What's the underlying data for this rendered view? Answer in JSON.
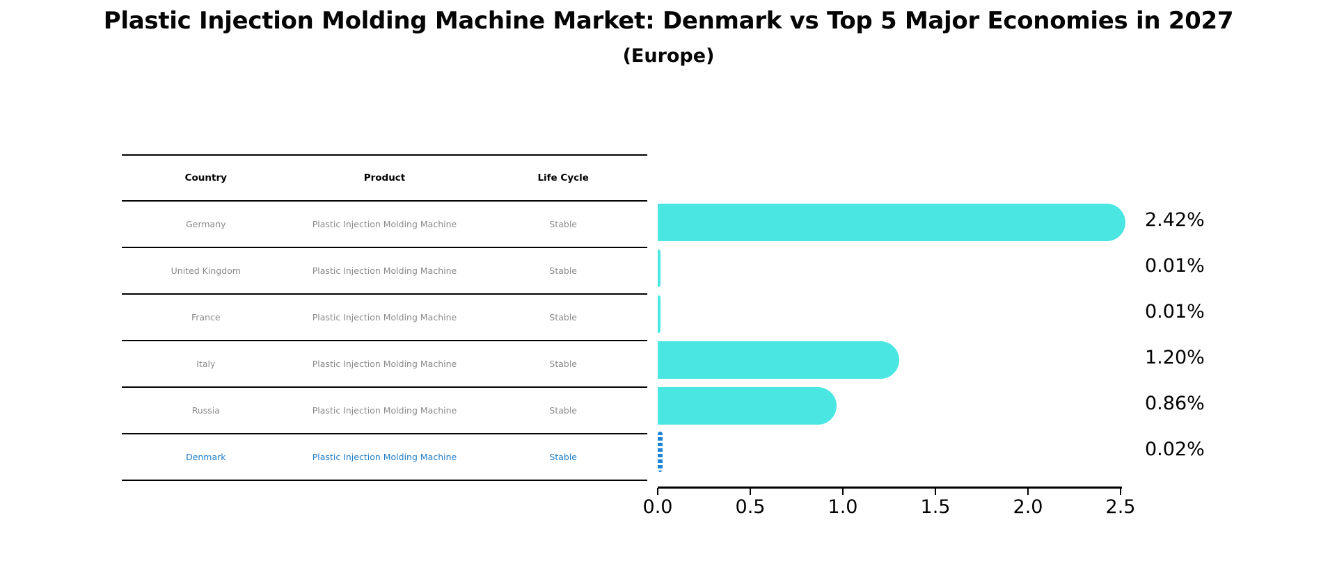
{
  "title": "Plastic Injection Molding Machine Market: Denmark vs Top 5 Major Economies in 2027",
  "subtitle": "(Europe)",
  "table": {
    "headers": [
      "Country",
      "Product",
      "Life Cycle"
    ],
    "rows": [
      {
        "country": "Germany",
        "product": "Plastic Injection Molding Machine",
        "life_cycle": "Stable"
      },
      {
        "country": "United Kingdom",
        "product": "Plastic Injection Molding Machine",
        "life_cycle": "Stable"
      },
      {
        "country": "France",
        "product": "Plastic Injection Molding Machine",
        "life_cycle": "Stable"
      },
      {
        "country": "Italy",
        "product": "Plastic Injection Molding Machine",
        "life_cycle": "Stable"
      },
      {
        "country": "Russia",
        "product": "Plastic Injection Molding Machine",
        "life_cycle": "Stable"
      },
      {
        "country": "Denmark",
        "product": "Plastic Injection Molding Machine",
        "life_cycle": "Stable"
      }
    ],
    "highlight_row_index": 5
  },
  "chart_data": {
    "type": "bar",
    "orientation": "horizontal",
    "categories": [
      "Germany",
      "United Kingdom",
      "France",
      "Italy",
      "Russia",
      "Denmark"
    ],
    "values": [
      2.42,
      0.01,
      0.01,
      1.2,
      0.86,
      0.02
    ],
    "labels": [
      "2.42%",
      "0.01%",
      "0.01%",
      "1.20%",
      "0.86%",
      "0.02%"
    ],
    "xlim": [
      0,
      2.5
    ],
    "xticks": [
      "0.0",
      "0.5",
      "1.0",
      "1.5",
      "2.0",
      "2.5"
    ],
    "xtick_values": [
      0,
      0.5,
      1.0,
      1.5,
      2.0,
      2.5
    ],
    "grid": false,
    "legend": "none",
    "bar_color": "#4AE6E2",
    "highlight_color": "#1E84D8",
    "highlight_index": 5,
    "highlight_style": "dotted"
  },
  "colors": {
    "bar": "#4AE6E2",
    "highlight_bar": "#1E84D8",
    "highlight_text": "#1F7CC8",
    "row_text": "#8a8a8a",
    "axis": "#000000"
  }
}
